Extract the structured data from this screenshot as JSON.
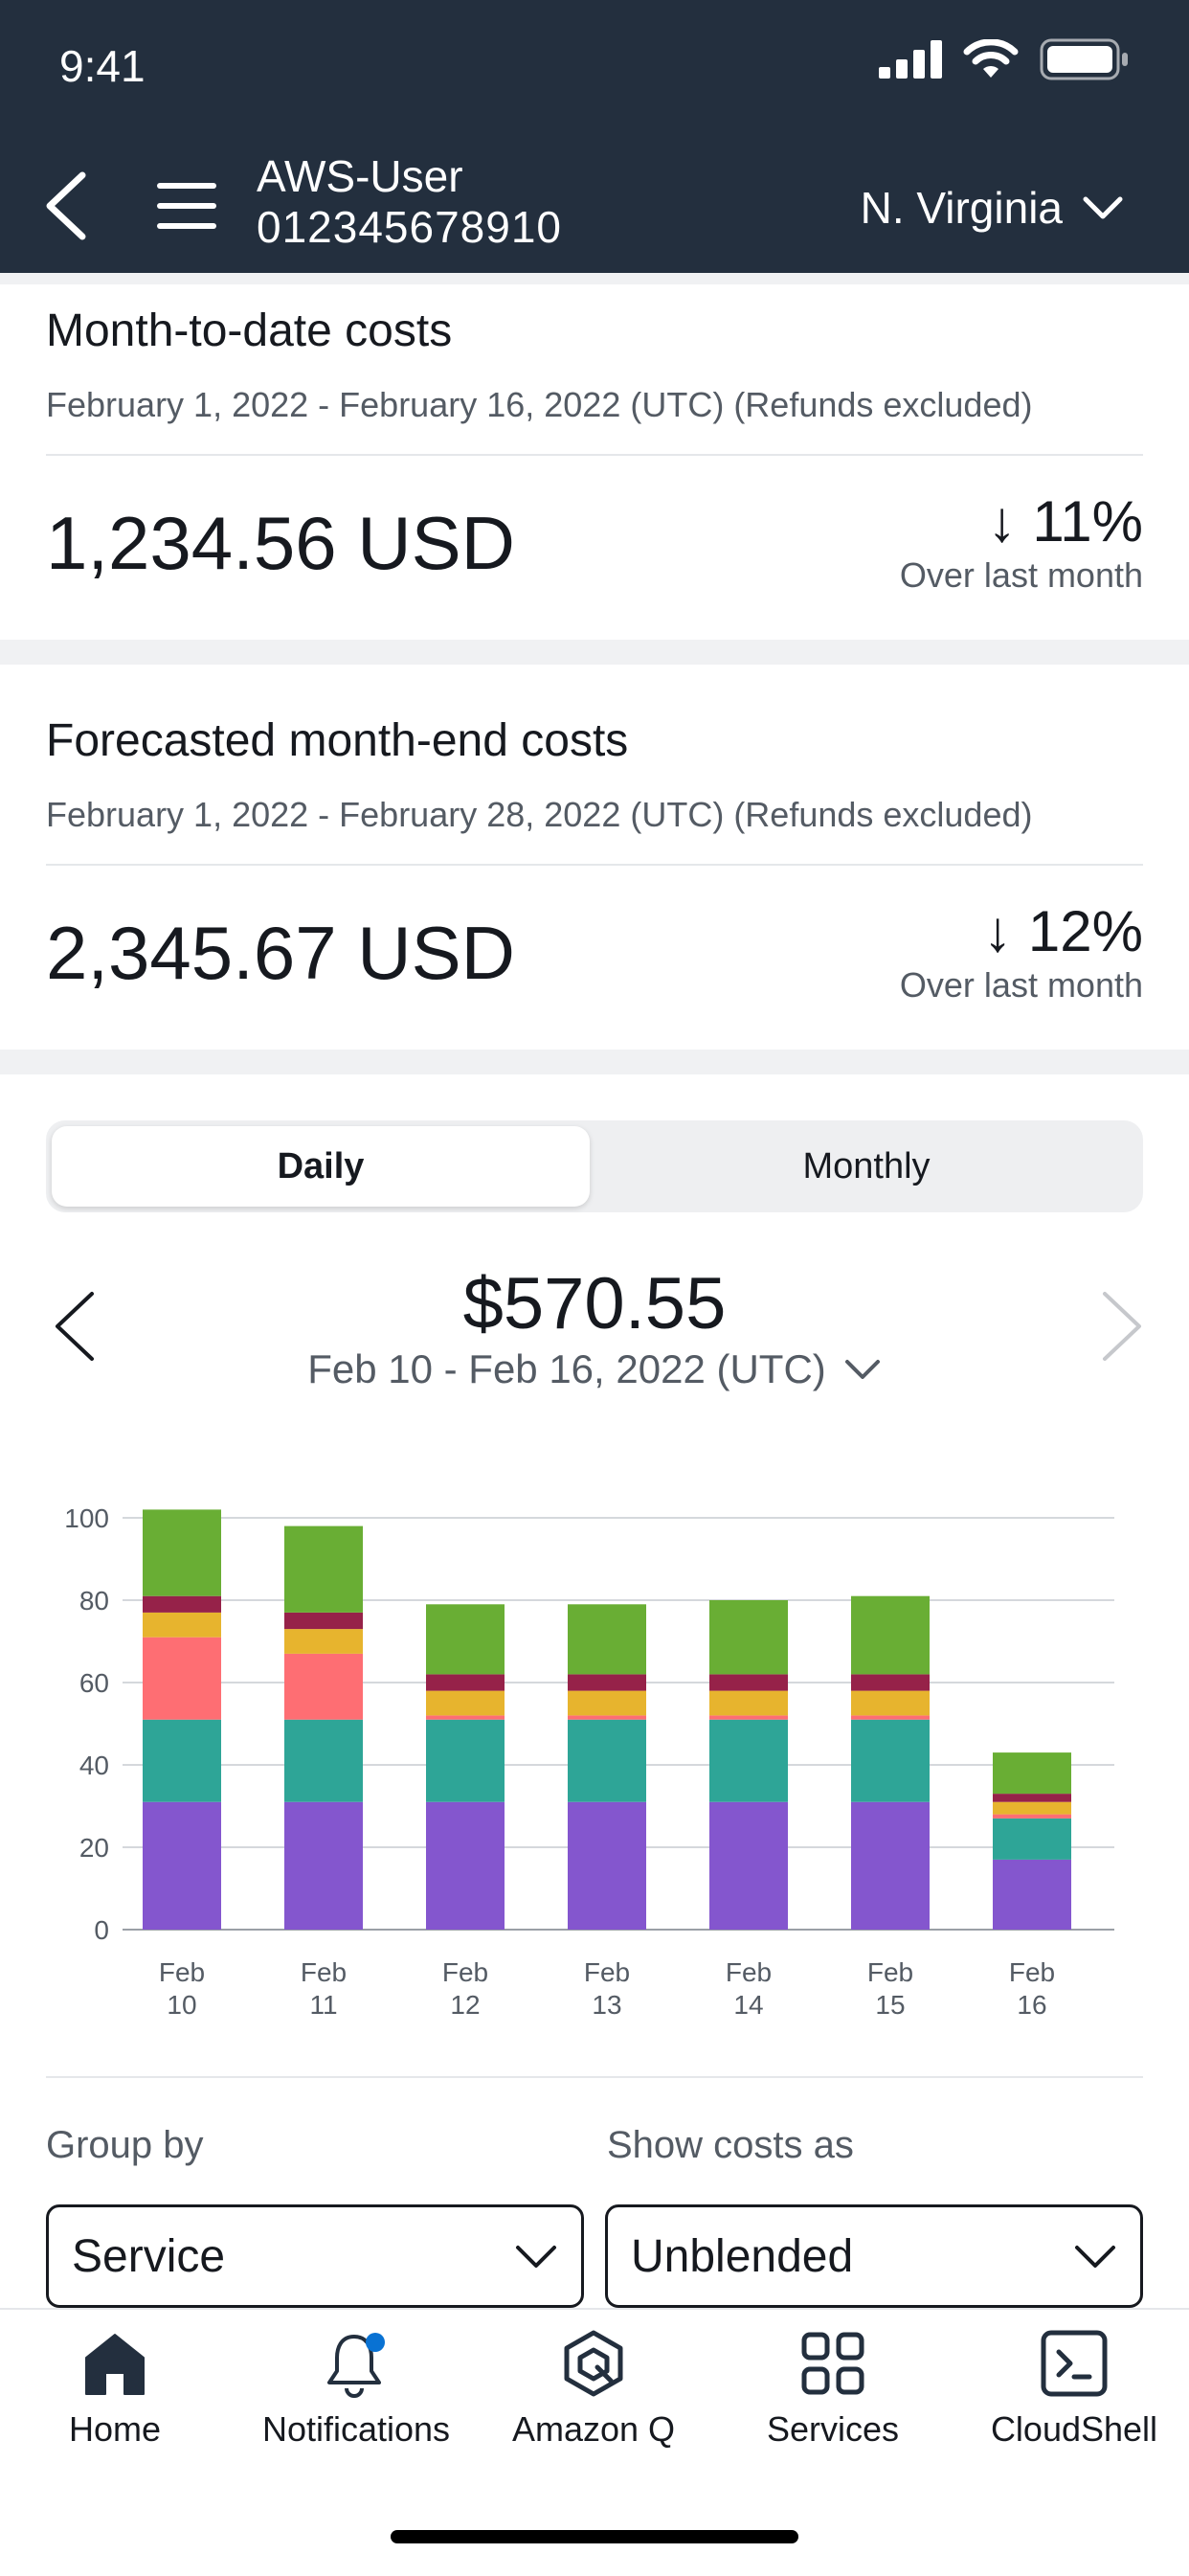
{
  "status": {
    "time": "9:41"
  },
  "header": {
    "account_name": "AWS-User",
    "account_id": "012345678910",
    "region": "N. Virginia"
  },
  "mtd": {
    "title": "Month-to-date costs",
    "subtitle": "February 1, 2022 - February 16, 2022 (UTC) (Refunds excluded)",
    "amount": "1,234.56 USD",
    "delta": "↓ 11%",
    "delta_note": "Over last month"
  },
  "forecast": {
    "title": "Forecasted month-end costs",
    "subtitle": "February 1, 2022 - February 28, 2022 (UTC) (Refunds excluded)",
    "amount": "2,345.67 USD",
    "delta": "↓ 12%",
    "delta_note": "Over last month"
  },
  "toggle": {
    "daily": "Daily",
    "monthly": "Monthly",
    "selected": "Daily"
  },
  "period": {
    "total": "$570.55",
    "range": "Feb 10 - Feb 16, 2022 (UTC)"
  },
  "chart_data": {
    "type": "bar",
    "stacked": true,
    "categories": [
      [
        "Feb",
        "10"
      ],
      [
        "Feb",
        "11"
      ],
      [
        "Feb",
        "12"
      ],
      [
        "Feb",
        "13"
      ],
      [
        "Feb",
        "14"
      ],
      [
        "Feb",
        "15"
      ],
      [
        "Feb",
        "16"
      ]
    ],
    "ylim": [
      0,
      100
    ],
    "yticks": [
      0,
      20,
      40,
      60,
      80,
      100
    ],
    "grid": true,
    "series": [
      {
        "color": "#8456ce",
        "values": [
          31,
          31,
          31,
          31,
          31,
          31,
          17
        ]
      },
      {
        "color": "#2ea597",
        "values": [
          20,
          20,
          20,
          20,
          20,
          20,
          10
        ]
      },
      {
        "color": "#fe6e73",
        "values": [
          20,
          16,
          1,
          1,
          1,
          1,
          1
        ]
      },
      {
        "color": "#e7b42e",
        "values": [
          6,
          6,
          6,
          6,
          6,
          6,
          3
        ]
      },
      {
        "color": "#962249",
        "values": [
          4,
          4,
          4,
          4,
          4,
          4,
          2
        ]
      },
      {
        "color": "#69ae34",
        "values": [
          21,
          21,
          17,
          17,
          18,
          19,
          10
        ]
      }
    ]
  },
  "group": {
    "group_by_label": "Group by",
    "group_by_value": "Service",
    "show_as_label": "Show costs as",
    "show_as_value": "Unblended"
  },
  "tabs": {
    "home": "Home",
    "notifications": "Notifications",
    "amazon_q": "Amazon Q",
    "services": "Services",
    "cloudshell": "CloudShell"
  },
  "colors": {
    "header_bg": "#232f3e",
    "accent_dot": "#0972d3"
  }
}
